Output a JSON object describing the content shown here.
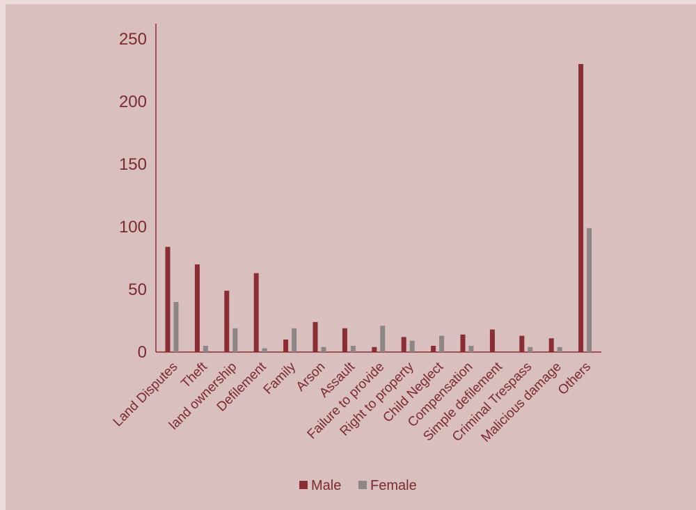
{
  "colors": {
    "background": "#d9bfbd",
    "axis": "#8a2e35",
    "text": "#7b2a31",
    "male": "#8a2e35",
    "female": "#8e8585"
  },
  "chart_data": {
    "type": "bar",
    "title": "",
    "xlabel": "",
    "ylabel": "",
    "ylim": [
      0,
      250
    ],
    "yticks": [
      0,
      50,
      100,
      150,
      200,
      250
    ],
    "grid": false,
    "legend_position": "bottom",
    "categories": [
      "Land Disputes",
      "Theft",
      "land ownership",
      "Defilement",
      "Family",
      "Arson",
      "Assault",
      "Failure to provide",
      "Right to property",
      "Child Neglect",
      "Compensation",
      "Simple defilement",
      "Criminal Trespass",
      "Malicious damage",
      "Others"
    ],
    "series": [
      {
        "name": "Male",
        "values": [
          84,
          70,
          49,
          63,
          10,
          24,
          19,
          4,
          12,
          5,
          14,
          18,
          13,
          11,
          230
        ]
      },
      {
        "name": "Female",
        "values": [
          40,
          5,
          19,
          3,
          19,
          4,
          5,
          21,
          9,
          13,
          5,
          0,
          4,
          4,
          99
        ]
      }
    ]
  }
}
